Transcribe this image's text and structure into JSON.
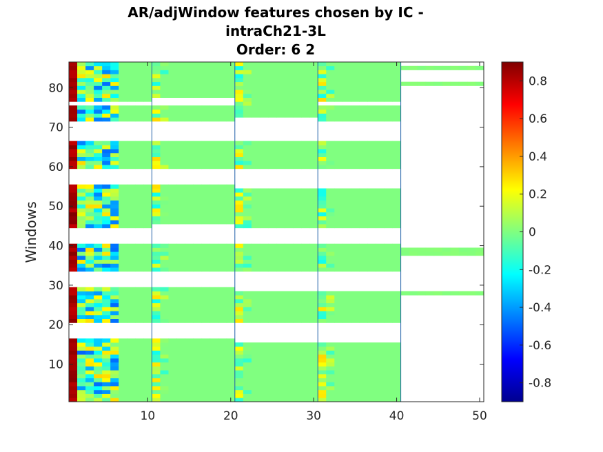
{
  "chart_data": {
    "type": "heatmap",
    "title_lines": [
      "AR/adjWindow features chosen by IC -",
      "intraCh21-3L",
      "Order: 6 2"
    ],
    "xlabel": "",
    "ylabel": "Windows",
    "xlim": [
      0.5,
      50.5
    ],
    "ylim": [
      0.5,
      86.5
    ],
    "xticks": [
      10,
      20,
      30,
      40,
      50
    ],
    "yticks": [
      10,
      20,
      30,
      40,
      50,
      60,
      70,
      80
    ],
    "colormap": "jet",
    "clim": [
      -0.9,
      0.9
    ],
    "colorbar_ticks": [
      0.8,
      0.6,
      0.4,
      0.2,
      0,
      -0.2,
      -0.4,
      -0.6,
      -0.8
    ],
    "colorbar_tick_labels": [
      "0.8",
      "0.6",
      "0.4",
      "0.2",
      "0",
      "-0.2",
      "-0.4",
      "-0.6",
      "-0.8"
    ],
    "block_separators_x": [
      10.5,
      20.5,
      30.5,
      40.5
    ],
    "feature_blocks": [
      {
        "columns": [
          1,
          10
        ],
        "active_windows": [
          [
            1,
            16
          ],
          [
            21,
            29
          ],
          [
            34,
            40
          ],
          [
            45,
            55
          ],
          [
            60,
            66
          ],
          [
            72,
            75
          ],
          [
            77,
            86
          ]
        ]
      },
      {
        "columns": [
          11,
          20
        ],
        "active_windows": [
          [
            1,
            16
          ],
          [
            21,
            29
          ],
          [
            34,
            40
          ],
          [
            46,
            55
          ],
          [
            60,
            66
          ],
          [
            72,
            75
          ],
          [
            78,
            86
          ]
        ]
      },
      {
        "columns": [
          21,
          30
        ],
        "active_windows": [
          [
            1,
            15
          ],
          [
            21,
            28
          ],
          [
            34,
            40
          ],
          [
            45,
            54
          ],
          [
            60,
            66
          ],
          [
            73,
            76
          ],
          [
            77,
            86
          ]
        ]
      },
      {
        "columns": [
          31,
          40
        ],
        "active_windows": [
          [
            1,
            15
          ],
          [
            21,
            28
          ],
          [
            34,
            40
          ],
          [
            45,
            54
          ],
          [
            60,
            66
          ],
          [
            72,
            75
          ],
          [
            77,
            86
          ]
        ]
      },
      {
        "columns": [
          41,
          50
        ],
        "active_windows": [
          [
            28,
            28
          ],
          [
            38,
            39
          ],
          [
            81,
            81
          ],
          [
            85,
            85
          ]
        ]
      }
    ],
    "typical_values": {
      "column_1": 0.85,
      "columns_2_to_6": "mixed values between -0.5 and 0.3",
      "columns_7_to_10": 0.0,
      "block_first_columns": "mixed values between -0.2 and 0.3",
      "background": 0.0
    }
  }
}
